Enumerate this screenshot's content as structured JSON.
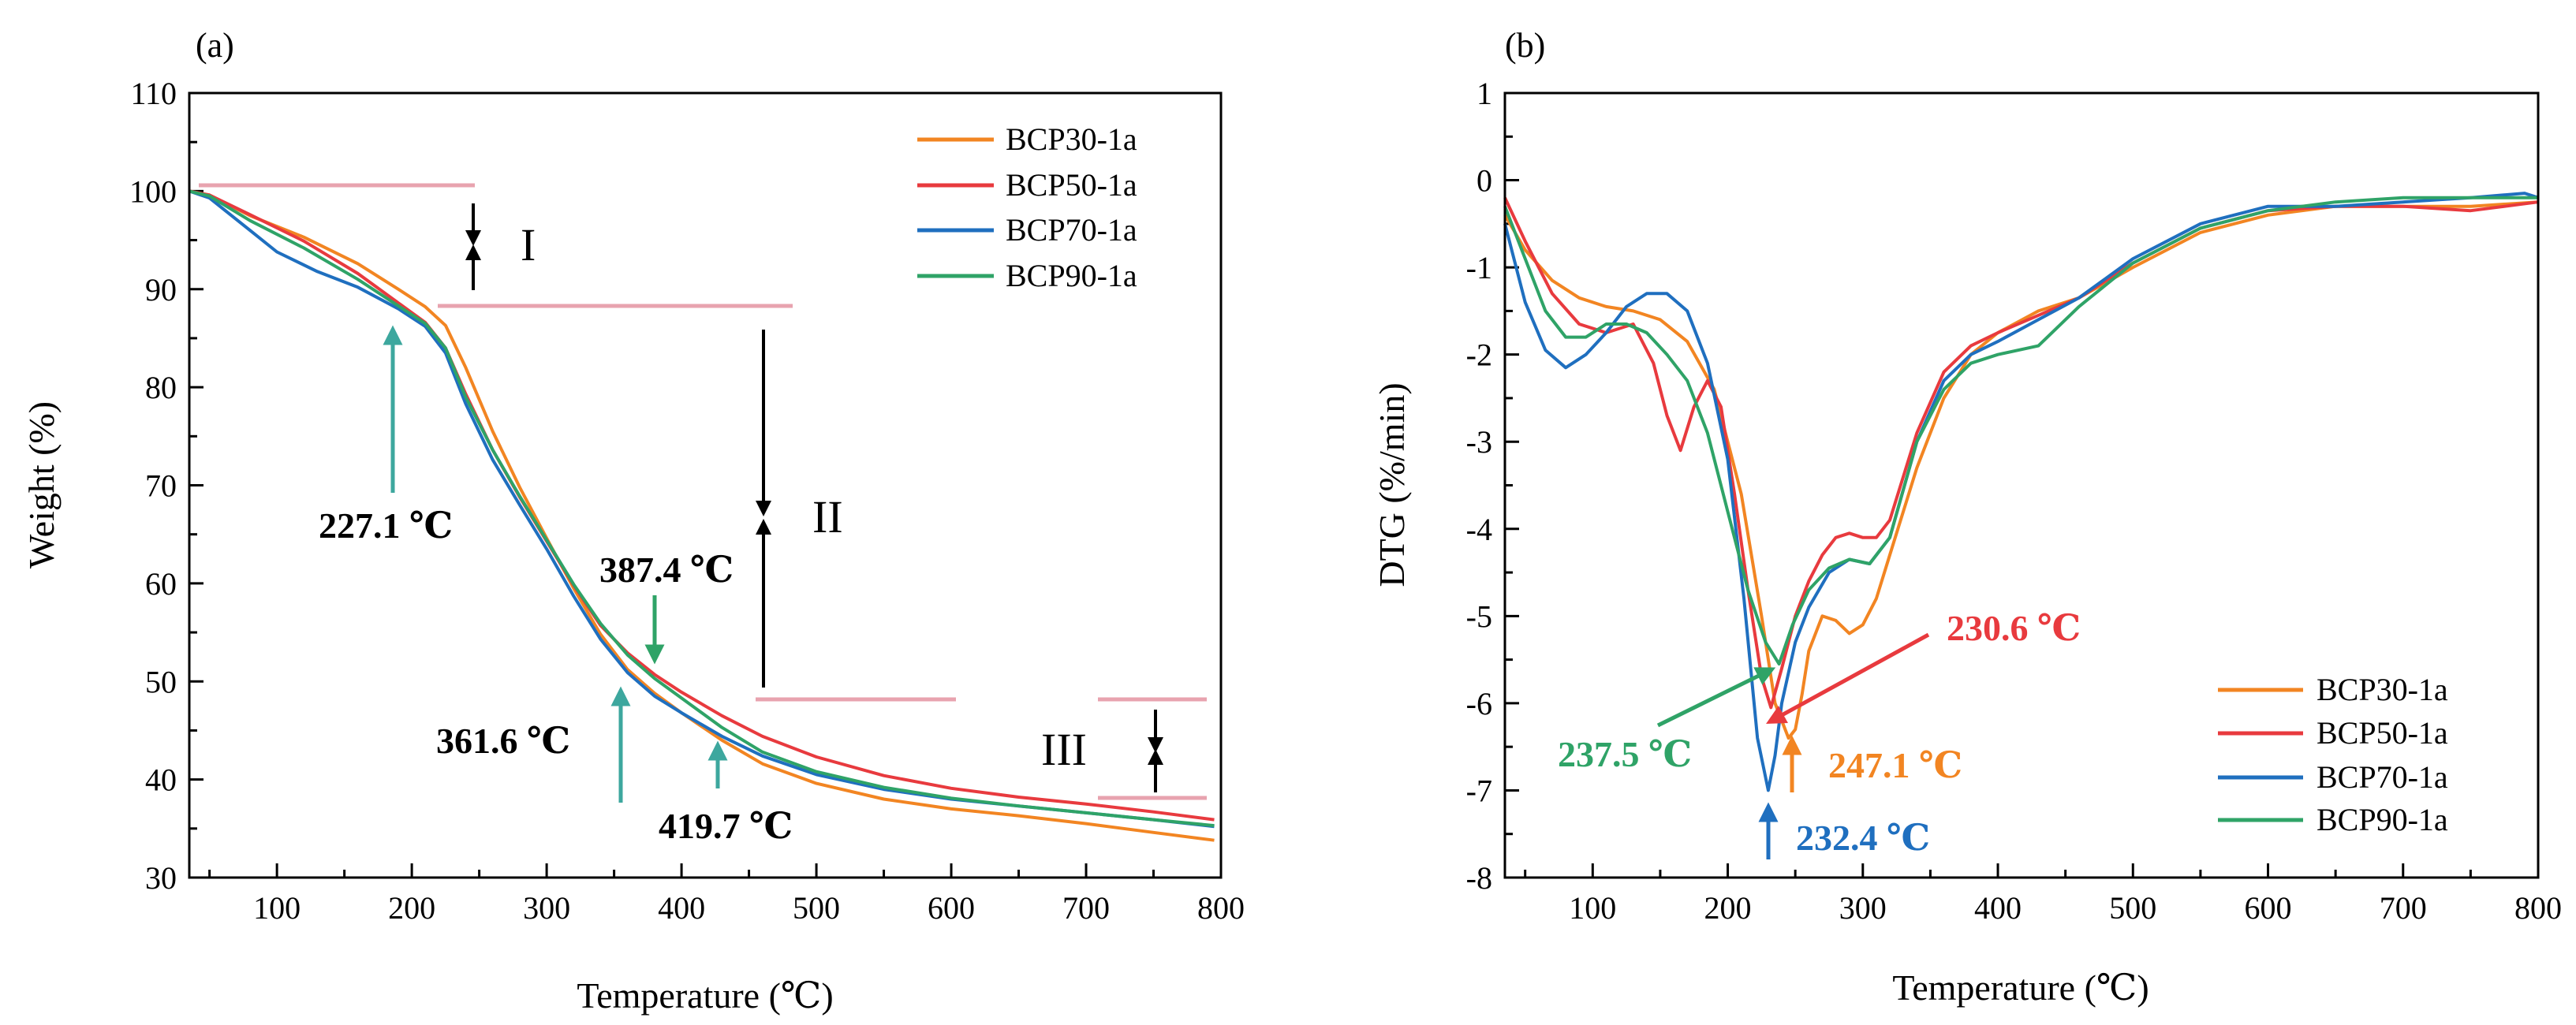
{
  "chart_data": [
    {
      "panel": "(a)",
      "type": "line",
      "xlabel": "Temperature (℃)",
      "ylabel": "Weight (%)",
      "xlim": [
        35,
        800
      ],
      "ylim": [
        30,
        110
      ],
      "xticks": [
        100,
        200,
        300,
        400,
        500,
        600,
        700,
        800
      ],
      "yticks": [
        30,
        40,
        50,
        60,
        70,
        80,
        90,
        100,
        110
      ],
      "legend": "top-right",
      "series": [
        {
          "name": "BCP30-1a",
          "color": "#F28522",
          "x": [
            35,
            50,
            80,
            120,
            160,
            190,
            210,
            225,
            240,
            260,
            280,
            300,
            320,
            340,
            360,
            380,
            400,
            430,
            460,
            500,
            550,
            600,
            650,
            700,
            750,
            795
          ],
          "y": [
            100,
            99.6,
            97.5,
            95.3,
            92.6,
            90.0,
            88.2,
            86.3,
            82.0,
            75.5,
            69.8,
            64.6,
            59.5,
            54.8,
            51.2,
            48.8,
            46.8,
            44.0,
            41.6,
            39.6,
            38.0,
            37.0,
            36.3,
            35.5,
            34.6,
            33.8
          ]
        },
        {
          "name": "BCP50-1a",
          "color": "#E83A3E",
          "x": [
            35,
            50,
            80,
            120,
            160,
            190,
            210,
            225,
            240,
            260,
            280,
            300,
            320,
            340,
            360,
            380,
            400,
            430,
            460,
            500,
            550,
            600,
            650,
            700,
            750,
            795
          ],
          "y": [
            100,
            99.6,
            97.6,
            94.9,
            91.6,
            88.6,
            86.6,
            84.0,
            79.3,
            73.6,
            68.8,
            64.3,
            59.8,
            55.7,
            52.9,
            50.7,
            48.9,
            46.5,
            44.4,
            42.3,
            40.4,
            39.1,
            38.2,
            37.5,
            36.7,
            35.9
          ]
        },
        {
          "name": "BCP70-1a",
          "color": "#1F6FBF",
          "x": [
            35,
            50,
            80,
            100,
            130,
            160,
            190,
            210,
            225,
            240,
            260,
            280,
            300,
            320,
            340,
            360,
            380,
            400,
            430,
            460,
            500,
            550,
            600,
            650,
            700,
            750,
            795
          ],
          "y": [
            100,
            99.3,
            96.0,
            93.8,
            91.8,
            90.2,
            88.0,
            86.2,
            83.5,
            78.3,
            72.6,
            68.0,
            63.5,
            58.7,
            54.3,
            50.9,
            48.5,
            46.8,
            44.4,
            42.4,
            40.5,
            39.0,
            38.0,
            37.3,
            36.6,
            35.9,
            35.2
          ]
        },
        {
          "name": "BCP90-1a",
          "color": "#2FA367",
          "x": [
            35,
            50,
            80,
            120,
            160,
            190,
            210,
            225,
            240,
            260,
            280,
            300,
            320,
            340,
            360,
            380,
            400,
            430,
            460,
            500,
            550,
            600,
            650,
            700,
            750,
            795
          ],
          "y": [
            100,
            99.5,
            97.0,
            94.2,
            91.0,
            88.3,
            86.5,
            84.0,
            79.0,
            73.6,
            68.9,
            64.4,
            59.9,
            55.9,
            52.7,
            50.3,
            48.3,
            45.3,
            42.8,
            40.8,
            39.2,
            38.1,
            37.3,
            36.6,
            35.9,
            35.3
          ]
        }
      ],
      "stage_labels": [
        "I",
        "II",
        "III"
      ],
      "stage_line_color": "#E8A3AF",
      "annotations": [
        {
          "text": "227.1 ℃",
          "color": "#3DA79E"
        },
        {
          "text": "387.4 ℃",
          "color": "#2FA367"
        },
        {
          "text": "361.6 ℃",
          "color": "#3DA79E"
        },
        {
          "text": "419.7 ℃",
          "color": "#3DA79E"
        }
      ]
    },
    {
      "panel": "(b)",
      "type": "line",
      "xlabel": "Temperature (℃)",
      "ylabel": "DTG (%/min)",
      "xlim": [
        35,
        800
      ],
      "ylim": [
        -8,
        1
      ],
      "xticks": [
        100,
        200,
        300,
        400,
        500,
        600,
        700,
        800
      ],
      "yticks": [
        -8,
        -7,
        -6,
        -5,
        -4,
        -3,
        -2,
        -1,
        0,
        1
      ],
      "legend": "bottom-right",
      "series": [
        {
          "name": "BCP30-1a",
          "color": "#F28522",
          "x": [
            35,
            50,
            70,
            90,
            110,
            130,
            150,
            170,
            190,
            210,
            225,
            235,
            245,
            250,
            255,
            260,
            270,
            280,
            290,
            300,
            310,
            320,
            340,
            360,
            380,
            400,
            430,
            460,
            500,
            550,
            600,
            650,
            700,
            750,
            800
          ],
          "y": [
            -0.4,
            -0.8,
            -1.15,
            -1.35,
            -1.45,
            -1.5,
            -1.6,
            -1.85,
            -2.4,
            -3.6,
            -5.0,
            -6.0,
            -6.4,
            -6.3,
            -5.9,
            -5.4,
            -5.0,
            -5.05,
            -5.2,
            -5.1,
            -4.8,
            -4.3,
            -3.3,
            -2.5,
            -2.0,
            -1.75,
            -1.5,
            -1.35,
            -1.0,
            -0.6,
            -0.4,
            -0.3,
            -0.3,
            -0.3,
            -0.25
          ]
        },
        {
          "name": "BCP50-1a",
          "color": "#E83A3E",
          "x": [
            35,
            50,
            70,
            90,
            110,
            130,
            145,
            155,
            165,
            175,
            185,
            195,
            205,
            215,
            225,
            232,
            240,
            250,
            260,
            270,
            280,
            290,
            300,
            310,
            320,
            340,
            360,
            380,
            400,
            430,
            460,
            500,
            550,
            600,
            650,
            700,
            750,
            800
          ],
          "y": [
            -0.2,
            -0.7,
            -1.3,
            -1.65,
            -1.75,
            -1.65,
            -2.1,
            -2.7,
            -3.1,
            -2.6,
            -2.3,
            -2.6,
            -3.6,
            -4.7,
            -5.7,
            -6.05,
            -5.6,
            -5.0,
            -4.6,
            -4.3,
            -4.1,
            -4.05,
            -4.1,
            -4.1,
            -3.9,
            -2.9,
            -2.2,
            -1.9,
            -1.75,
            -1.55,
            -1.35,
            -0.95,
            -0.55,
            -0.35,
            -0.3,
            -0.3,
            -0.35,
            -0.25
          ]
        },
        {
          "name": "BCP70-1a",
          "color": "#1F6FBF",
          "x": [
            35,
            50,
            65,
            80,
            95,
            110,
            125,
            140,
            155,
            170,
            185,
            200,
            212,
            222,
            230,
            235,
            240,
            250,
            260,
            275,
            290,
            305,
            320,
            340,
            360,
            380,
            400,
            430,
            460,
            500,
            550,
            600,
            650,
            700,
            750,
            790,
            800
          ],
          "y": [
            -0.5,
            -1.4,
            -1.95,
            -2.15,
            -2.0,
            -1.75,
            -1.45,
            -1.3,
            -1.3,
            -1.5,
            -2.1,
            -3.2,
            -4.8,
            -6.4,
            -7.0,
            -6.6,
            -6.0,
            -5.3,
            -4.9,
            -4.5,
            -4.35,
            -4.4,
            -4.1,
            -3.0,
            -2.3,
            -2.0,
            -1.85,
            -1.6,
            -1.35,
            -0.9,
            -0.5,
            -0.3,
            -0.3,
            -0.25,
            -0.2,
            -0.15,
            -0.2
          ]
        },
        {
          "name": "BCP90-1a",
          "color": "#2FA367",
          "x": [
            35,
            50,
            65,
            80,
            95,
            110,
            125,
            140,
            155,
            170,
            185,
            200,
            215,
            228,
            238,
            248,
            260,
            275,
            290,
            305,
            320,
            340,
            360,
            380,
            400,
            430,
            460,
            500,
            550,
            600,
            650,
            700,
            750,
            800
          ],
          "y": [
            -0.3,
            -0.9,
            -1.5,
            -1.8,
            -1.8,
            -1.65,
            -1.65,
            -1.75,
            -2.0,
            -2.3,
            -2.9,
            -3.8,
            -4.7,
            -5.3,
            -5.55,
            -5.1,
            -4.7,
            -4.45,
            -4.35,
            -4.4,
            -4.1,
            -3.0,
            -2.4,
            -2.1,
            -2.0,
            -1.9,
            -1.45,
            -0.95,
            -0.55,
            -0.35,
            -0.25,
            -0.2,
            -0.2,
            -0.2
          ]
        }
      ],
      "annotations": [
        {
          "text": "230.6 ℃",
          "color": "#E83A3E"
        },
        {
          "text": "237.5 ℃",
          "color": "#2FA367"
        },
        {
          "text": "247.1 ℃",
          "color": "#F28522"
        },
        {
          "text": "232.4 ℃",
          "color": "#1F6FBF"
        }
      ]
    }
  ]
}
